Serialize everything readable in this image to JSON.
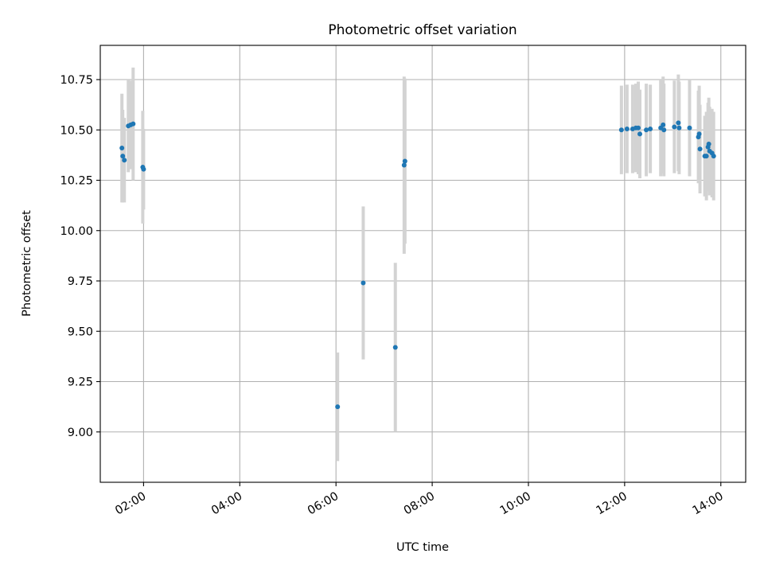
{
  "chart_data": {
    "type": "scatter",
    "title": "Photometric offset variation",
    "xlabel": "UTC time",
    "ylabel": "Photometric offset",
    "xlim": [
      "01:06",
      "14:31"
    ],
    "ylim": [
      8.75,
      10.92
    ],
    "x_ticks": [
      "02:00",
      "04:00",
      "06:00",
      "08:00",
      "10:00",
      "12:00",
      "14:00"
    ],
    "y_ticks": [
      "9.00",
      "9.25",
      "9.50",
      "9.75",
      "10.00",
      "10.25",
      "10.50",
      "10.75"
    ],
    "grid": true,
    "colors": {
      "point": "#1f77b4",
      "errorbar": "#d3d3d3",
      "grid": "#b0b0b0"
    },
    "series": [
      {
        "points": [
          {
            "x": "01:33",
            "y": 10.41,
            "err": 0.27
          },
          {
            "x": "01:34",
            "y": 10.37,
            "err": 0.23
          },
          {
            "x": "01:36",
            "y": 10.35,
            "err": 0.21
          },
          {
            "x": "01:41",
            "y": 10.52,
            "err": 0.23
          },
          {
            "x": "01:44",
            "y": 10.525,
            "err": 0.22
          },
          {
            "x": "01:47",
            "y": 10.53,
            "err": 0.28
          },
          {
            "x": "01:59",
            "y": 10.315,
            "err": 0.28
          },
          {
            "x": "02:00",
            "y": 10.305,
            "err": 0.2
          },
          {
            "x": "06:02",
            "y": 9.125,
            "err": 0.27
          },
          {
            "x": "06:34",
            "y": 9.74,
            "err": 0.38
          },
          {
            "x": "07:14",
            "y": 9.42,
            "err": 0.42
          },
          {
            "x": "07:25",
            "y": 10.325,
            "err": 0.44
          },
          {
            "x": "07:26",
            "y": 10.345,
            "err": 0.41
          },
          {
            "x": "11:56",
            "y": 10.5,
            "err": 0.22
          },
          {
            "x": "12:03",
            "y": 10.505,
            "err": 0.22
          },
          {
            "x": "12:10",
            "y": 10.505,
            "err": 0.22
          },
          {
            "x": "12:14",
            "y": 10.51,
            "err": 0.22
          },
          {
            "x": "12:17",
            "y": 10.51,
            "err": 0.23
          },
          {
            "x": "12:19",
            "y": 10.48,
            "err": 0.22
          },
          {
            "x": "12:27",
            "y": 10.5,
            "err": 0.23
          },
          {
            "x": "12:32",
            "y": 10.505,
            "err": 0.22
          },
          {
            "x": "12:45",
            "y": 10.51,
            "err": 0.24
          },
          {
            "x": "12:48",
            "y": 10.525,
            "err": 0.24
          },
          {
            "x": "12:49",
            "y": 10.5,
            "err": 0.23
          },
          {
            "x": "13:02",
            "y": 10.515,
            "err": 0.23
          },
          {
            "x": "13:07",
            "y": 10.535,
            "err": 0.24
          },
          {
            "x": "13:08",
            "y": 10.51,
            "err": 0.23
          },
          {
            "x": "13:21",
            "y": 10.51,
            "err": 0.24
          },
          {
            "x": "13:32",
            "y": 10.465,
            "err": 0.23
          },
          {
            "x": "13:33",
            "y": 10.48,
            "err": 0.24
          },
          {
            "x": "13:34",
            "y": 10.405,
            "err": 0.22
          },
          {
            "x": "13:40",
            "y": 10.37,
            "err": 0.2
          },
          {
            "x": "13:42",
            "y": 10.37,
            "err": 0.22
          },
          {
            "x": "13:44",
            "y": 10.415,
            "err": 0.22
          },
          {
            "x": "13:45",
            "y": 10.43,
            "err": 0.23
          },
          {
            "x": "13:46",
            "y": 10.395,
            "err": 0.22
          },
          {
            "x": "13:49",
            "y": 10.385,
            "err": 0.22
          },
          {
            "x": "13:51",
            "y": 10.37,
            "err": 0.22
          }
        ]
      }
    ]
  }
}
